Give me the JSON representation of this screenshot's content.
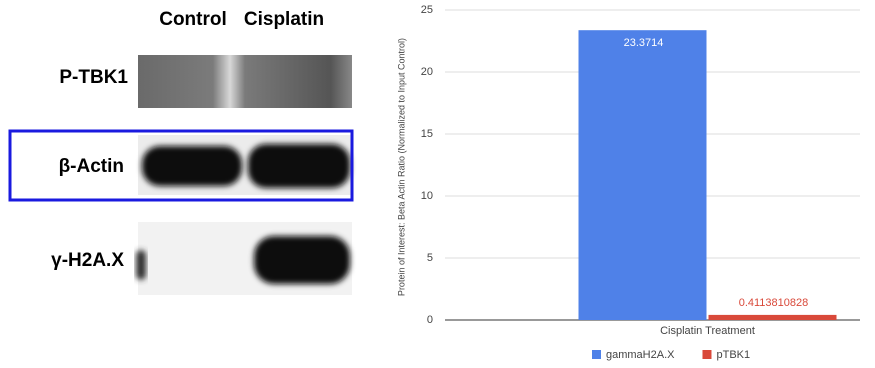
{
  "blot": {
    "columns": [
      "Control",
      "Cisplatin"
    ],
    "rows": [
      "P-TBK1",
      "β-Actin",
      "γ-H2A.X"
    ]
  },
  "chart_data": {
    "type": "bar",
    "y_label": "Protein of Interest: Beta Actin Ratio (Normalized to Input Control)",
    "categories": [
      "Cisplatin Treatment"
    ],
    "series": [
      {
        "name": "gammaH2A.X",
        "color": "#4f81e8",
        "values": [
          23.3714
        ]
      },
      {
        "name": "pTBK1",
        "color": "#d9493a",
        "values": [
          0.4113810828
        ]
      }
    ],
    "ylim": [
      0,
      25
    ],
    "yticks": [
      0,
      5,
      10,
      15,
      20,
      25
    ],
    "grid": true,
    "legend": "bottom"
  }
}
